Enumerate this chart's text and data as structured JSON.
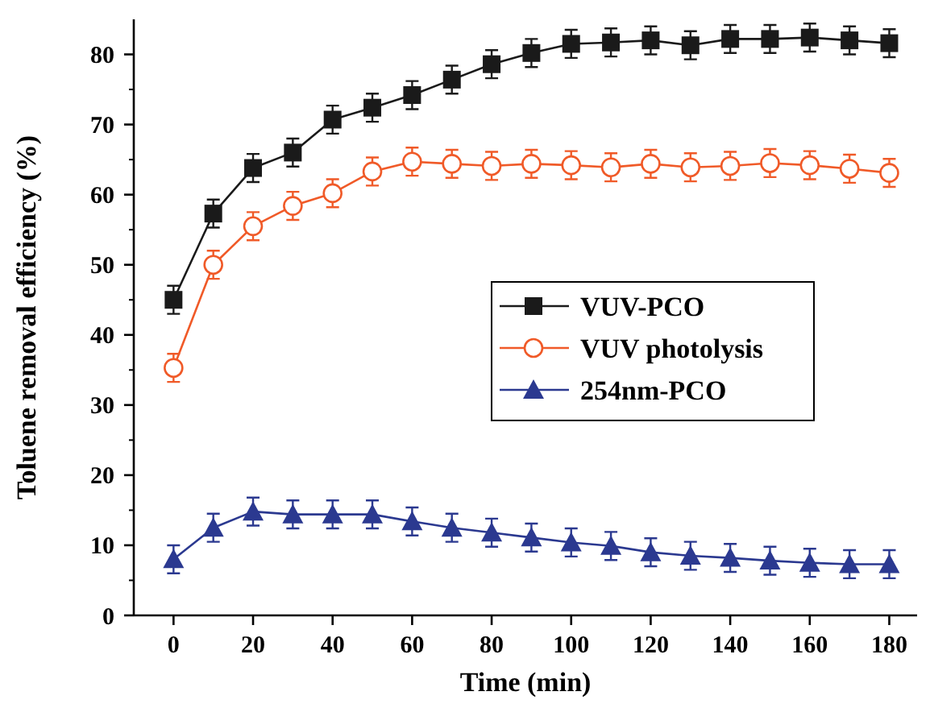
{
  "chart_data": {
    "type": "line",
    "xlabel": "Time (min)",
    "ylabel": "Toluene removal efficiency (%)",
    "x": [
      0,
      10,
      20,
      30,
      40,
      50,
      60,
      70,
      80,
      90,
      100,
      110,
      120,
      130,
      140,
      150,
      160,
      170,
      180
    ],
    "xlim": [
      -10,
      187
    ],
    "xticks": [
      0,
      20,
      40,
      60,
      80,
      100,
      120,
      140,
      160,
      180
    ],
    "ylim": [
      0,
      85
    ],
    "yticks": [
      0,
      10,
      20,
      30,
      40,
      50,
      60,
      70,
      80
    ],
    "legend": "right",
    "grid": false,
    "line_style": "solid",
    "series": [
      {
        "name": "VUV-PCO",
        "color": "#1a1a1a",
        "marker": "square",
        "values": [
          45,
          57.3,
          63.8,
          66,
          70.7,
          72.4,
          74.2,
          76.4,
          78.6,
          80.2,
          81.5,
          81.7,
          82,
          81.3,
          82.2,
          82.2,
          82.4,
          82,
          81.6
        ],
        "errors": [
          2,
          2,
          2,
          2,
          2,
          2,
          2,
          2,
          2,
          2,
          2,
          2,
          2,
          2,
          2,
          2,
          2,
          2,
          2
        ]
      },
      {
        "name": "VUV photolysis",
        "color": "#f05a28",
        "marker": "circle",
        "values": [
          35.3,
          50,
          55.5,
          58.4,
          60.2,
          63.3,
          64.7,
          64.4,
          64.1,
          64.4,
          64.2,
          63.9,
          64.4,
          63.9,
          64.1,
          64.5,
          64.2,
          63.7,
          63.1
        ],
        "errors": [
          2,
          2,
          2,
          2,
          2,
          2,
          2,
          2,
          2,
          2,
          2,
          2,
          2,
          2,
          2,
          2,
          2,
          2,
          2
        ]
      },
      {
        "name": "254nm-PCO",
        "color": "#2b3990",
        "marker": "triangle",
        "values": [
          8,
          12.5,
          14.8,
          14.4,
          14.4,
          14.4,
          13.4,
          12.5,
          11.8,
          11.1,
          10.4,
          9.9,
          9,
          8.5,
          8.2,
          7.8,
          7.5,
          7.3,
          7.3
        ],
        "errors": [
          2,
          2,
          2,
          2,
          2,
          2,
          2,
          2,
          2,
          2,
          2,
          2,
          2,
          2,
          2,
          2,
          2,
          2,
          2
        ]
      }
    ]
  }
}
